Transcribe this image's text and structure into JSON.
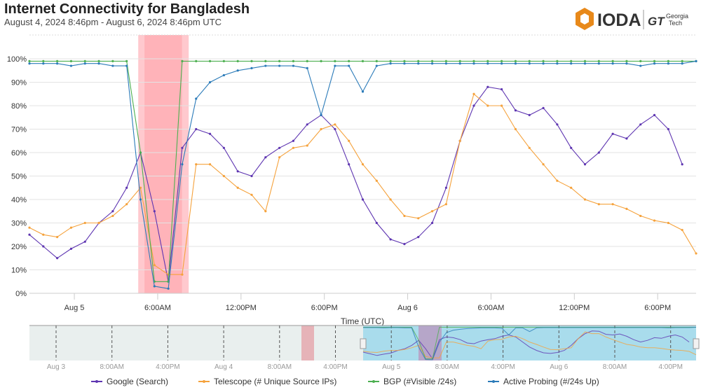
{
  "header": {
    "title": "Internet Connectivity for Bangladesh",
    "subtitle": "August 4, 2024 8:46pm - August 6, 2024 8:46pm UTC"
  },
  "logo": {
    "ioda": "IODA",
    "gt": "GT",
    "georgia_tech": "Georgia Tech"
  },
  "chart_data": {
    "type": "line",
    "xlabel": "Time (UTC)",
    "ylabel": "",
    "xlim": [
      "2024-08-04T20:46Z",
      "2024-08-06T20:46Z"
    ],
    "ylim": [
      0,
      100
    ],
    "yticks": [
      "0%",
      "10%",
      "20%",
      "30%",
      "40%",
      "50%",
      "60%",
      "70%",
      "80%",
      "90%",
      "100%"
    ],
    "xticks": [
      {
        "t": "2024-08-05T00:00Z",
        "label": "Aug 5"
      },
      {
        "t": "2024-08-05T06:00Z",
        "label": "6:00AM"
      },
      {
        "t": "2024-08-05T12:00Z",
        "label": "12:00PM"
      },
      {
        "t": "2024-08-05T18:00Z",
        "label": "6:00PM"
      },
      {
        "t": "2024-08-06T00:00Z",
        "label": "Aug 6"
      },
      {
        "t": "2024-08-06T06:00Z",
        "label": "6:00AM"
      },
      {
        "t": "2024-08-06T12:00Z",
        "label": "12:00PM"
      },
      {
        "t": "2024-08-06T18:00Z",
        "label": "6:00PM"
      }
    ],
    "grid": true,
    "legend_position": "bottom",
    "alert_bands": [
      {
        "from": "2024-08-05T04:36Z",
        "to": "2024-08-05T08:14Z",
        "color": "#ffc9ce"
      },
      {
        "from": "2024-08-05T05:03Z",
        "to": "2024-08-05T07:45Z",
        "color": "#ffb3b9"
      }
    ],
    "x": [
      "2024-08-04T20:46Z",
      "2024-08-04T21:46Z",
      "2024-08-04T22:46Z",
      "2024-08-04T23:46Z",
      "2024-08-05T00:46Z",
      "2024-08-05T01:46Z",
      "2024-08-05T02:46Z",
      "2024-08-05T03:46Z",
      "2024-08-05T04:46Z",
      "2024-08-05T05:46Z",
      "2024-08-05T06:46Z",
      "2024-08-05T07:46Z",
      "2024-08-05T08:46Z",
      "2024-08-05T09:46Z",
      "2024-08-05T10:46Z",
      "2024-08-05T11:46Z",
      "2024-08-05T12:46Z",
      "2024-08-05T13:46Z",
      "2024-08-05T14:46Z",
      "2024-08-05T15:46Z",
      "2024-08-05T16:46Z",
      "2024-08-05T17:46Z",
      "2024-08-05T18:46Z",
      "2024-08-05T19:46Z",
      "2024-08-05T20:46Z",
      "2024-08-05T21:46Z",
      "2024-08-05T22:46Z",
      "2024-08-05T23:46Z",
      "2024-08-06T00:46Z",
      "2024-08-06T01:46Z",
      "2024-08-06T02:46Z",
      "2024-08-06T03:46Z",
      "2024-08-06T04:46Z",
      "2024-08-06T05:46Z",
      "2024-08-06T06:46Z",
      "2024-08-06T07:46Z",
      "2024-08-06T08:46Z",
      "2024-08-06T09:46Z",
      "2024-08-06T10:46Z",
      "2024-08-06T11:46Z",
      "2024-08-06T12:46Z",
      "2024-08-06T13:46Z",
      "2024-08-06T14:46Z",
      "2024-08-06T15:46Z",
      "2024-08-06T16:46Z",
      "2024-08-06T17:46Z",
      "2024-08-06T18:46Z",
      "2024-08-06T19:46Z",
      "2024-08-06T20:46Z"
    ],
    "series": [
      {
        "name": "Google (Search)",
        "color": "#5e35b1",
        "values": [
          25,
          20,
          15,
          19,
          22,
          30,
          35,
          45,
          60,
          35,
          5,
          62,
          70,
          68,
          62,
          52,
          50,
          58,
          62,
          65,
          72,
          76,
          70,
          55,
          40,
          30,
          23,
          21,
          24,
          30,
          45,
          65,
          80,
          88,
          87,
          78,
          76,
          79,
          72,
          62,
          55,
          60,
          68,
          66,
          72,
          76,
          70,
          55,
          null
        ]
      },
      {
        "name": "Telescope (# Unique Source IPs)",
        "color": "#f5a23c",
        "values": [
          28,
          25,
          24,
          28,
          30,
          30,
          33,
          38,
          45,
          12,
          8,
          8,
          55,
          55,
          50,
          45,
          42,
          35,
          58,
          62,
          63,
          70,
          72,
          65,
          55,
          48,
          40,
          33,
          32,
          35,
          38,
          65,
          85,
          80,
          80,
          70,
          62,
          55,
          48,
          45,
          40,
          38,
          38,
          36,
          33,
          31,
          30,
          27,
          17
        ]
      },
      {
        "name": "BGP (#Visible /24s)",
        "color": "#4caf50",
        "values": [
          99,
          99,
          99,
          99,
          99,
          99,
          99,
          99,
          60,
          5,
          5,
          99,
          99,
          99,
          99,
          99,
          99,
          99,
          99,
          99,
          99,
          99,
          99,
          99,
          99,
          99,
          99,
          99,
          99,
          99,
          99,
          99,
          99,
          99,
          99,
          99,
          99,
          99,
          99,
          99,
          99,
          99,
          99,
          99,
          99,
          99,
          99,
          99,
          99
        ]
      },
      {
        "name": "Active Probing (#/24s Up)",
        "color": "#2b7bb9",
        "values": [
          98,
          98,
          98,
          97,
          98,
          98,
          97,
          97,
          40,
          3,
          2,
          55,
          83,
          90,
          93,
          95,
          96,
          97,
          97,
          97,
          96,
          76,
          97,
          97,
          86,
          97,
          98,
          98,
          98,
          98,
          98,
          98,
          98,
          98,
          98,
          98,
          98,
          98,
          98,
          98,
          98,
          98,
          98,
          98,
          97,
          98,
          98,
          98,
          99
        ]
      }
    ],
    "navigator": {
      "xticks": [
        "Aug 3",
        "8:00AM",
        "4:00PM",
        "Aug 4",
        "8:00AM",
        "4:00PM",
        "Aug 5",
        "8:00AM",
        "4:00PM",
        "Aug 6",
        "8:00AM",
        "4:00PM"
      ],
      "selection": [
        "2024-08-04T20:46Z",
        "2024-08-06T20:46Z"
      ]
    }
  }
}
